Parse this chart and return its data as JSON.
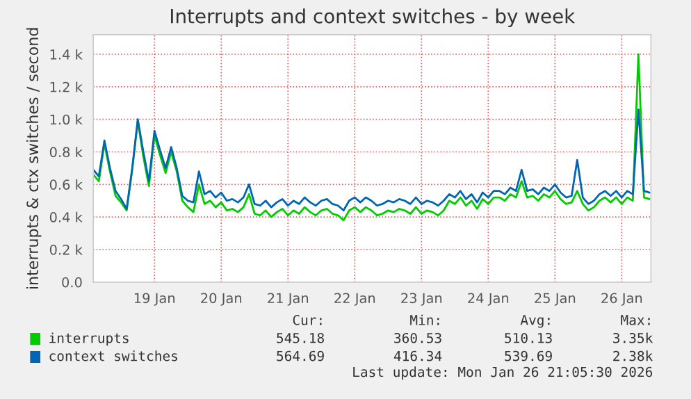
{
  "chart_data": {
    "type": "line",
    "title": "Interrupts and context switches - by week",
    "ylabel": "interrupts & ctx switches / second",
    "x": [
      "2026-01-18T14:00",
      "2026-01-18T16:00",
      "2026-01-18T18:00",
      "2026-01-18T20:00",
      "2026-01-18T22:00",
      "2026-01-19T00:00",
      "2026-01-19T02:00",
      "2026-01-19T04:00",
      "2026-01-19T06:00",
      "2026-01-19T08:00",
      "2026-01-19T10:00",
      "2026-01-19T12:00",
      "2026-01-19T14:00",
      "2026-01-19T16:00",
      "2026-01-19T18:00",
      "2026-01-19T20:00",
      "2026-01-19T22:00",
      "2026-01-20T00:00",
      "2026-01-20T02:00",
      "2026-01-20T04:00",
      "2026-01-20T06:00",
      "2026-01-20T08:00",
      "2026-01-20T10:00",
      "2026-01-20T12:00",
      "2026-01-20T14:00",
      "2026-01-20T16:00",
      "2026-01-20T18:00",
      "2026-01-20T20:00",
      "2026-01-20T22:00",
      "2026-01-21T00:00",
      "2026-01-21T02:00",
      "2026-01-21T04:00",
      "2026-01-21T06:00",
      "2026-01-21T08:00",
      "2026-01-21T10:00",
      "2026-01-21T12:00",
      "2026-01-21T14:00",
      "2026-01-21T16:00",
      "2026-01-21T18:00",
      "2026-01-21T20:00",
      "2026-01-21T22:00",
      "2026-01-22T00:00",
      "2026-01-22T02:00",
      "2026-01-22T04:00",
      "2026-01-22T06:00",
      "2026-01-22T08:00",
      "2026-01-22T10:00",
      "2026-01-22T12:00",
      "2026-01-22T14:00",
      "2026-01-22T16:00",
      "2026-01-22T18:00",
      "2026-01-22T20:00",
      "2026-01-22T22:00",
      "2026-01-23T00:00",
      "2026-01-23T02:00",
      "2026-01-23T04:00",
      "2026-01-23T06:00",
      "2026-01-23T08:00",
      "2026-01-23T10:00",
      "2026-01-23T12:00",
      "2026-01-23T14:00",
      "2026-01-23T16:00",
      "2026-01-23T18:00",
      "2026-01-23T20:00",
      "2026-01-23T22:00",
      "2026-01-24T00:00",
      "2026-01-24T02:00",
      "2026-01-24T04:00",
      "2026-01-24T06:00",
      "2026-01-24T08:00",
      "2026-01-24T10:00",
      "2026-01-24T12:00",
      "2026-01-24T14:00",
      "2026-01-24T16:00",
      "2026-01-24T18:00",
      "2026-01-24T20:00",
      "2026-01-24T22:00",
      "2026-01-25T00:00",
      "2026-01-25T02:00",
      "2026-01-25T04:00",
      "2026-01-25T06:00",
      "2026-01-25T08:00",
      "2026-01-25T10:00",
      "2026-01-25T12:00",
      "2026-01-25T14:00",
      "2026-01-25T16:00",
      "2026-01-25T18:00",
      "2026-01-25T20:00",
      "2026-01-25T22:00",
      "2026-01-26T00:00",
      "2026-01-26T02:00",
      "2026-01-26T04:00",
      "2026-01-26T06:00",
      "2026-01-26T08:00",
      "2026-01-26T10:00",
      "2026-01-26T12:00",
      "2026-01-26T14:00",
      "2026-01-26T16:00",
      "2026-01-26T18:00",
      "2026-01-26T20:00",
      "2026-01-26T22:00"
    ],
    "series": [
      {
        "name": "interrupts",
        "color": "#00cc00",
        "values": [
          660,
          620,
          850,
          680,
          530,
          490,
          440,
          690,
          990,
          770,
          590,
          900,
          780,
          670,
          800,
          680,
          500,
          460,
          430,
          600,
          480,
          500,
          460,
          490,
          440,
          450,
          430,
          460,
          540,
          420,
          410,
          440,
          400,
          430,
          450,
          410,
          440,
          420,
          460,
          430,
          410,
          440,
          450,
          420,
          410,
          380,
          440,
          460,
          430,
          460,
          440,
          410,
          420,
          440,
          430,
          450,
          440,
          420,
          460,
          420,
          440,
          430,
          410,
          440,
          500,
          480,
          520,
          470,
          500,
          450,
          510,
          480,
          520,
          520,
          500,
          540,
          520,
          620,
          520,
          530,
          500,
          540,
          520,
          560,
          510,
          480,
          490,
          560,
          480,
          440,
          460,
          500,
          520,
          490,
          520,
          480,
          520,
          500,
          1400,
          520,
          510
        ]
      },
      {
        "name": "context switches",
        "color": "#0066b3",
        "values": [
          690,
          650,
          870,
          700,
          560,
          510,
          450,
          700,
          1000,
          800,
          620,
          930,
          810,
          700,
          830,
          700,
          530,
          500,
          490,
          680,
          540,
          560,
          520,
          550,
          500,
          510,
          490,
          520,
          600,
          480,
          470,
          500,
          460,
          490,
          510,
          470,
          500,
          480,
          520,
          490,
          470,
          500,
          510,
          480,
          470,
          440,
          500,
          520,
          490,
          520,
          500,
          470,
          480,
          500,
          490,
          510,
          500,
          480,
          520,
          480,
          500,
          490,
          470,
          500,
          540,
          520,
          560,
          510,
          540,
          490,
          550,
          520,
          560,
          560,
          540,
          580,
          560,
          690,
          560,
          570,
          540,
          580,
          560,
          600,
          550,
          520,
          530,
          750,
          520,
          480,
          500,
          540,
          560,
          530,
          560,
          520,
          560,
          540,
          1060,
          560,
          550
        ]
      }
    ],
    "xlim": [
      "2026-01-18T14:00",
      "2026-01-26T22:30"
    ],
    "xticks": [
      {
        "value": "2026-01-19T12:00",
        "label": "19 Jan"
      },
      {
        "value": "2026-01-20T12:00",
        "label": "20 Jan"
      },
      {
        "value": "2026-01-21T12:00",
        "label": "21 Jan"
      },
      {
        "value": "2026-01-22T12:00",
        "label": "22 Jan"
      },
      {
        "value": "2026-01-23T12:00",
        "label": "23 Jan"
      },
      {
        "value": "2026-01-24T12:00",
        "label": "24 Jan"
      },
      {
        "value": "2026-01-25T12:00",
        "label": "25 Jan"
      },
      {
        "value": "2026-01-26T12:00",
        "label": "26 Jan"
      }
    ],
    "ylim": [
      0,
      1520
    ],
    "yticks": [
      {
        "value": 0,
        "label": "0.0"
      },
      {
        "value": 200,
        "label": "0.2 k"
      },
      {
        "value": 400,
        "label": "0.4 k"
      },
      {
        "value": 600,
        "label": "0.6 k"
      },
      {
        "value": 800,
        "label": "0.8 k"
      },
      {
        "value": 1000,
        "label": "1.0 k"
      },
      {
        "value": 1200,
        "label": "1.2 k"
      },
      {
        "value": 1400,
        "label": "1.4 k"
      }
    ],
    "grid": true,
    "legend": "bottom",
    "line_style": "solid",
    "annotations": [
      "Cur:",
      "Min:",
      "Avg:",
      "Max:",
      "545.18",
      "360.53",
      "510.13",
      "3.35k",
      "564.69",
      "416.34",
      "539.69",
      "2.38k",
      "Last update: Mon Jan 26 21:05:30 2026"
    ]
  }
}
